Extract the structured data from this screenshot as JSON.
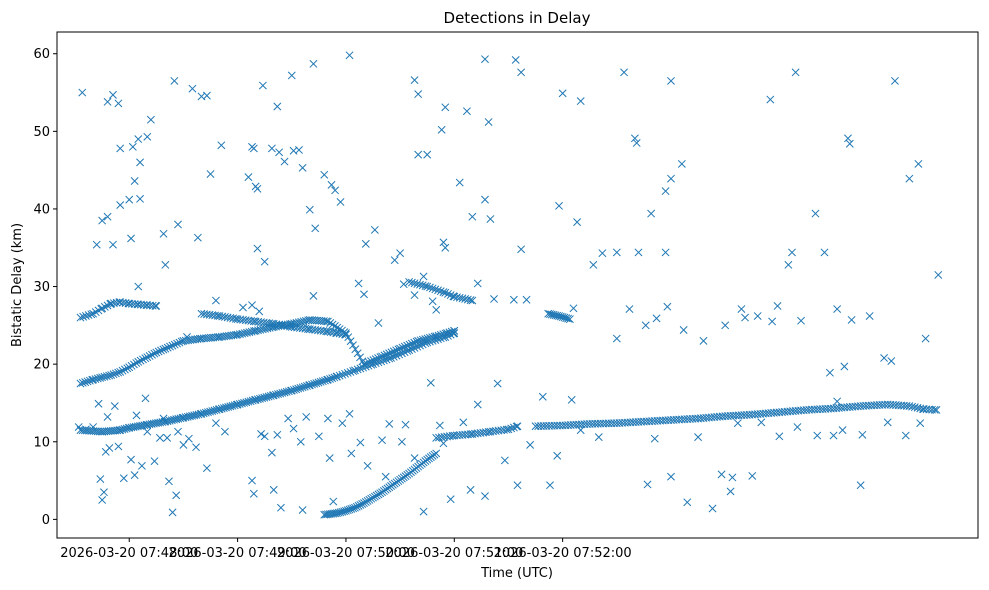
{
  "chart_data": {
    "type": "scatter",
    "title": "Detections in Delay",
    "xlabel": "Time (UTC)",
    "ylabel": "Bistatic Delay (km)",
    "marker": "x",
    "color": "#1f77b4",
    "xlim_seconds": [
      -40,
      470
    ],
    "ylim": [
      -2.4,
      62.8
    ],
    "xticks": [
      {
        "t": 0,
        "label": "2026-03-20 07:48:00"
      },
      {
        "t": 60,
        "label": "2026-03-20 07:49:00"
      },
      {
        "t": 120,
        "label": "2026-03-20 07:50:00"
      },
      {
        "t": 180,
        "label": "2026-03-20 07:51:00"
      },
      {
        "t": 240,
        "label": "2026-03-20 07:52:00"
      }
    ],
    "yticks": [
      0,
      10,
      20,
      30,
      40,
      50,
      60
    ],
    "x_reference": "seconds after 2026-03-20 07:48:00 UTC",
    "tracks": [
      {
        "name": "track-a",
        "t": [
          -27,
          -20,
          -15,
          -10,
          -5,
          0,
          5,
          10,
          15,
          20,
          30,
          40,
          50,
          60,
          70,
          80,
          90,
          100,
          110,
          120,
          130,
          140,
          150,
          160,
          170,
          176,
          180
        ],
        "y": [
          17.5,
          18.0,
          18.3,
          18.6,
          19.0,
          19.6,
          20.3,
          20.9,
          21.5,
          22.0,
          23.0,
          23.3,
          23.5,
          23.8,
          24.3,
          24.8,
          25.2,
          25.7,
          25.5,
          24.0,
          20.0,
          21.0,
          22.0,
          23.0,
          23.6,
          24.0,
          24.3
        ],
        "step": 1.3
      },
      {
        "name": "track-b",
        "t": [
          -27,
          -20,
          -15,
          -10,
          -5,
          0,
          5,
          10,
          15
        ],
        "y": [
          26.0,
          26.5,
          27.2,
          27.8,
          28.0,
          27.8,
          27.7,
          27.6,
          27.5
        ],
        "step": 1.5
      },
      {
        "name": "track-c",
        "t": [
          40,
          50,
          60,
          70,
          80,
          90,
          100,
          110,
          115,
          120
        ],
        "y": [
          26.5,
          26.2,
          25.8,
          25.5,
          25.2,
          24.8,
          24.5,
          24.2,
          24.0,
          23.8
        ],
        "step": 1.5
      },
      {
        "name": "track-d",
        "t": [
          155,
          165,
          175,
          180,
          190
        ],
        "y": [
          30.6,
          30.0,
          29.2,
          28.7,
          28.2
        ],
        "step": 1.5
      },
      {
        "name": "track-e",
        "t": [
          -27,
          -15,
          -5,
          0,
          10,
          20,
          30,
          40,
          50,
          60,
          70,
          80,
          90,
          100,
          110,
          115
        ],
        "y": [
          11.5,
          11.3,
          11.5,
          11.8,
          12.2,
          12.6,
          13.1,
          13.6,
          14.2,
          14.8,
          15.4,
          16.0,
          16.6,
          17.3,
          18.0,
          18.4
        ],
        "step": 1.2
      },
      {
        "name": "track-f",
        "t": [
          115,
          125,
          135,
          145,
          155,
          165,
          175,
          180
        ],
        "y": [
          18.4,
          19.2,
          20.0,
          20.8,
          21.8,
          22.8,
          23.5,
          24.0
        ],
        "step": 1.5
      },
      {
        "name": "track-g",
        "t": [
          108,
          115,
          120,
          125,
          130,
          135,
          140,
          145,
          150,
          155,
          160,
          165,
          170
        ],
        "y": [
          0.6,
          0.8,
          1.1,
          1.5,
          2.1,
          2.8,
          3.5,
          4.3,
          5.1,
          5.9,
          6.8,
          7.7,
          8.5
        ],
        "step": 1.0
      },
      {
        "name": "track-h",
        "t": [
          170,
          180,
          190,
          200,
          210,
          215
        ],
        "y": [
          10.5,
          10.8,
          11.0,
          11.3,
          11.6,
          12.0
        ],
        "step": 1.5
      },
      {
        "name": "track-i",
        "t": [
          225,
          240,
          255,
          270,
          285,
          300,
          315,
          330,
          345,
          360,
          375,
          390,
          405,
          420,
          432,
          440,
          447
        ],
        "y": [
          12.0,
          12.1,
          12.3,
          12.4,
          12.6,
          12.8,
          13.0,
          13.3,
          13.5,
          13.8,
          14.1,
          14.3,
          14.6,
          14.8,
          14.6,
          14.2,
          14.1
        ],
        "step": 1.5
      },
      {
        "name": "track-j",
        "t": [
          232,
          238,
          244
        ],
        "y": [
          26.5,
          26.2,
          25.8
        ],
        "step": 1.0
      }
    ],
    "points": [
      {
        "t": -26,
        "y": 55.0
      },
      {
        "t": -12,
        "y": 53.8
      },
      {
        "t": -9,
        "y": 54.7
      },
      {
        "t": -6,
        "y": 53.6
      },
      {
        "t": 25,
        "y": 56.5
      },
      {
        "t": 35,
        "y": 55.5
      },
      {
        "t": 40,
        "y": 54.5
      },
      {
        "t": 43,
        "y": 54.6
      },
      {
        "t": 74,
        "y": 55.9
      },
      {
        "t": 82,
        "y": 53.2
      },
      {
        "t": 90,
        "y": 57.2
      },
      {
        "t": 102,
        "y": 58.7
      },
      {
        "t": 122,
        "y": 59.8
      },
      {
        "t": 158,
        "y": 56.6
      },
      {
        "t": 160,
        "y": 54.8
      },
      {
        "t": 173,
        "y": 50.2
      },
      {
        "t": 175,
        "y": 53.1
      },
      {
        "t": 197,
        "y": 59.3
      },
      {
        "t": 214,
        "y": 59.2
      },
      {
        "t": 217,
        "y": 57.6
      },
      {
        "t": 240,
        "y": 54.9
      },
      {
        "t": 250,
        "y": 53.9
      },
      {
        "t": 274,
        "y": 57.6
      },
      {
        "t": 300,
        "y": 56.5
      },
      {
        "t": -5,
        "y": 47.8
      },
      {
        "t": 2,
        "y": 48.0
      },
      {
        "t": 5,
        "y": 49.0
      },
      {
        "t": 6,
        "y": 46.0
      },
      {
        "t": 10,
        "y": 49.3
      },
      {
        "t": 12,
        "y": 51.5
      },
      {
        "t": 45,
        "y": 44.5
      },
      {
        "t": 51,
        "y": 48.2
      },
      {
        "t": 68,
        "y": 48.0
      },
      {
        "t": 69,
        "y": 47.8
      },
      {
        "t": 79,
        "y": 47.8
      },
      {
        "t": 83,
        "y": 47.3
      },
      {
        "t": 86,
        "y": 46.1
      },
      {
        "t": 91,
        "y": 47.5
      },
      {
        "t": 94,
        "y": 47.6
      },
      {
        "t": 96,
        "y": 45.3
      },
      {
        "t": 160,
        "y": 47.0
      },
      {
        "t": 165,
        "y": 47.0
      },
      {
        "t": 183,
        "y": 43.4
      },
      {
        "t": 187,
        "y": 52.6
      },
      {
        "t": 199,
        "y": 51.2
      },
      {
        "t": 280,
        "y": 49.1
      },
      {
        "t": 281,
        "y": 48.5
      },
      {
        "t": 297,
        "y": 42.3
      },
      {
        "t": -5,
        "y": 40.5
      },
      {
        "t": 0,
        "y": 41.2
      },
      {
        "t": 1,
        "y": 36.2
      },
      {
        "t": 3,
        "y": 43.6
      },
      {
        "t": 6,
        "y": 41.3
      },
      {
        "t": 19,
        "y": 36.8
      },
      {
        "t": 27,
        "y": 38.0
      },
      {
        "t": 38,
        "y": 36.3
      },
      {
        "t": 66,
        "y": 44.1
      },
      {
        "t": 70,
        "y": 42.9
      },
      {
        "t": 71,
        "y": 42.6
      },
      {
        "t": 71,
        "y": 34.9
      },
      {
        "t": 75,
        "y": 33.2
      },
      {
        "t": 100,
        "y": 39.9
      },
      {
        "t": 103,
        "y": 37.5
      },
      {
        "t": 108,
        "y": 44.4
      },
      {
        "t": 112,
        "y": 43.1
      },
      {
        "t": 114,
        "y": 42.4
      },
      {
        "t": 117,
        "y": 40.9
      },
      {
        "t": 131,
        "y": 35.5
      },
      {
        "t": 136,
        "y": 37.3
      },
      {
        "t": 174,
        "y": 35.7
      },
      {
        "t": 175,
        "y": 35.0
      },
      {
        "t": 190,
        "y": 39.0
      },
      {
        "t": 197,
        "y": 41.2
      },
      {
        "t": 200,
        "y": 38.7
      },
      {
        "t": 217,
        "y": 34.8
      },
      {
        "t": 238,
        "y": 40.4
      },
      {
        "t": 248,
        "y": 38.3
      },
      {
        "t": 270,
        "y": 34.4
      },
      {
        "t": 282,
        "y": 34.4
      },
      {
        "t": 289,
        "y": 39.4
      },
      {
        "t": 297,
        "y": 34.4
      },
      {
        "t": 300,
        "y": 43.9
      },
      {
        "t": 306,
        "y": 45.8
      },
      {
        "t": 5,
        "y": 30.0
      },
      {
        "t": -15,
        "y": 38.5
      },
      {
        "t": -12,
        "y": 39.0
      },
      {
        "t": -18,
        "y": 35.4
      },
      {
        "t": -9,
        "y": 35.4
      },
      {
        "t": -10,
        "y": 27.8
      },
      {
        "t": 20,
        "y": 32.8
      },
      {
        "t": 32,
        "y": 23.5
      },
      {
        "t": 48,
        "y": 28.2
      },
      {
        "t": 63,
        "y": 27.3
      },
      {
        "t": 68,
        "y": 27.6
      },
      {
        "t": 72,
        "y": 26.8
      },
      {
        "t": 83,
        "y": 25.1
      },
      {
        "t": 102,
        "y": 28.8
      },
      {
        "t": 127,
        "y": 30.4
      },
      {
        "t": 130,
        "y": 29.0
      },
      {
        "t": 138,
        "y": 25.3
      },
      {
        "t": 147,
        "y": 33.4
      },
      {
        "t": 150,
        "y": 34.3
      },
      {
        "t": 152,
        "y": 30.3
      },
      {
        "t": 158,
        "y": 28.9
      },
      {
        "t": 163,
        "y": 31.3
      },
      {
        "t": 168,
        "y": 28.1
      },
      {
        "t": 170,
        "y": 27.0
      },
      {
        "t": 193,
        "y": 30.4
      },
      {
        "t": 202,
        "y": 28.4
      },
      {
        "t": 213,
        "y": 28.3
      },
      {
        "t": 220,
        "y": 28.3
      },
      {
        "t": 246,
        "y": 27.2
      },
      {
        "t": 257,
        "y": 32.8
      },
      {
        "t": 262,
        "y": 34.3
      },
      {
        "t": 270,
        "y": 23.3
      },
      {
        "t": 277,
        "y": 27.1
      },
      {
        "t": 286,
        "y": 25.0
      },
      {
        "t": 292,
        "y": 25.9
      },
      {
        "t": 298,
        "y": 27.4
      },
      {
        "t": 307,
        "y": 24.4
      },
      {
        "t": 318,
        "y": 23.0
      },
      {
        "t": 330,
        "y": 25.0
      },
      {
        "t": 339,
        "y": 27.1
      },
      {
        "t": 341,
        "y": 26.0
      },
      {
        "t": 348,
        "y": 26.2
      },
      {
        "t": 356,
        "y": 25.5
      },
      {
        "t": 359,
        "y": 27.5
      },
      {
        "t": 367,
        "y": 34.4
      },
      {
        "t": 372,
        "y": 25.6
      },
      {
        "t": 380,
        "y": 39.4
      },
      {
        "t": 385,
        "y": 34.4
      },
      {
        "t": 392,
        "y": 27.1
      },
      {
        "t": 400,
        "y": 25.7
      },
      {
        "t": 410,
        "y": 26.2
      },
      {
        "t": 418,
        "y": 20.8
      },
      {
        "t": 422,
        "y": 20.4
      },
      {
        "t": 424,
        "y": 56.5
      },
      {
        "t": 432,
        "y": 43.9
      },
      {
        "t": 437,
        "y": 45.8
      },
      {
        "t": 441,
        "y": 23.3
      },
      {
        "t": 448,
        "y": 31.5
      },
      {
        "t": 398,
        "y": 49.1
      },
      {
        "t": 399,
        "y": 48.4
      },
      {
        "t": 396,
        "y": 19.7
      },
      {
        "t": 392,
        "y": 15.2
      },
      {
        "t": 388,
        "y": 18.9
      },
      {
        "t": 369,
        "y": 57.6
      },
      {
        "t": 355,
        "y": 54.1
      },
      {
        "t": 365,
        "y": 32.8
      },
      {
        "t": -28,
        "y": 11.9
      },
      {
        "t": -24,
        "y": 11.6
      },
      {
        "t": -20,
        "y": 11.9
      },
      {
        "t": -16,
        "y": 5.2
      },
      {
        "t": -15,
        "y": 2.5
      },
      {
        "t": -14,
        "y": 3.5
      },
      {
        "t": -13,
        "y": 8.7
      },
      {
        "t": -11,
        "y": 9.2
      },
      {
        "t": -17,
        "y": 14.9
      },
      {
        "t": -12,
        "y": 13.2
      },
      {
        "t": -8,
        "y": 14.6
      },
      {
        "t": -6,
        "y": 9.4
      },
      {
        "t": -3,
        "y": 5.3
      },
      {
        "t": 1,
        "y": 7.7
      },
      {
        "t": 3,
        "y": 5.7
      },
      {
        "t": 4,
        "y": 13.4
      },
      {
        "t": 7,
        "y": 6.9
      },
      {
        "t": 9,
        "y": 15.6
      },
      {
        "t": 10,
        "y": 11.3
      },
      {
        "t": 14,
        "y": 7.5
      },
      {
        "t": 17,
        "y": 10.5
      },
      {
        "t": 19,
        "y": 13.0
      },
      {
        "t": 21,
        "y": 10.5
      },
      {
        "t": 22,
        "y": 4.9
      },
      {
        "t": 24,
        "y": 0.9
      },
      {
        "t": 26,
        "y": 3.1
      },
      {
        "t": 27,
        "y": 11.3
      },
      {
        "t": 30,
        "y": 9.6
      },
      {
        "t": 33,
        "y": 10.4
      },
      {
        "t": 37,
        "y": 9.3
      },
      {
        "t": 43,
        "y": 6.6
      },
      {
        "t": 48,
        "y": 12.4
      },
      {
        "t": 53,
        "y": 11.3
      },
      {
        "t": 68,
        "y": 5.0
      },
      {
        "t": 69,
        "y": 3.3
      },
      {
        "t": 73,
        "y": 11.0
      },
      {
        "t": 75,
        "y": 10.7
      },
      {
        "t": 79,
        "y": 8.6
      },
      {
        "t": 80,
        "y": 3.8
      },
      {
        "t": 82,
        "y": 10.9
      },
      {
        "t": 84,
        "y": 1.5
      },
      {
        "t": 88,
        "y": 13.0
      },
      {
        "t": 91,
        "y": 11.7
      },
      {
        "t": 95,
        "y": 10.0
      },
      {
        "t": 96,
        "y": 1.2
      },
      {
        "t": 98,
        "y": 13.2
      },
      {
        "t": 105,
        "y": 10.7
      },
      {
        "t": 110,
        "y": 13.0
      },
      {
        "t": 111,
        "y": 7.9
      },
      {
        "t": 113,
        "y": 2.3
      },
      {
        "t": 118,
        "y": 12.4
      },
      {
        "t": 122,
        "y": 13.6
      },
      {
        "t": 123,
        "y": 8.5
      },
      {
        "t": 128,
        "y": 9.9
      },
      {
        "t": 132,
        "y": 6.9
      },
      {
        "t": 140,
        "y": 10.2
      },
      {
        "t": 142,
        "y": 5.5
      },
      {
        "t": 144,
        "y": 12.3
      },
      {
        "t": 151,
        "y": 10.0
      },
      {
        "t": 153,
        "y": 12.2
      },
      {
        "t": 158,
        "y": 7.9
      },
      {
        "t": 163,
        "y": 1.0
      },
      {
        "t": 167,
        "y": 17.6
      },
      {
        "t": 172,
        "y": 12.1
      },
      {
        "t": 174,
        "y": 9.8
      },
      {
        "t": 178,
        "y": 2.6
      },
      {
        "t": 185,
        "y": 12.5
      },
      {
        "t": 189,
        "y": 3.8
      },
      {
        "t": 193,
        "y": 14.8
      },
      {
        "t": 197,
        "y": 3.0
      },
      {
        "t": 204,
        "y": 17.5
      },
      {
        "t": 208,
        "y": 7.6
      },
      {
        "t": 215,
        "y": 4.4
      },
      {
        "t": 222,
        "y": 9.6
      },
      {
        "t": 229,
        "y": 15.8
      },
      {
        "t": 233,
        "y": 4.4
      },
      {
        "t": 237,
        "y": 8.2
      },
      {
        "t": 245,
        "y": 15.4
      },
      {
        "t": 250,
        "y": 11.5
      },
      {
        "t": 260,
        "y": 10.6
      },
      {
        "t": 287,
        "y": 4.5
      },
      {
        "t": 291,
        "y": 10.4
      },
      {
        "t": 300,
        "y": 5.5
      },
      {
        "t": 309,
        "y": 2.2
      },
      {
        "t": 315,
        "y": 10.6
      },
      {
        "t": 323,
        "y": 1.4
      },
      {
        "t": 328,
        "y": 5.8
      },
      {
        "t": 333,
        "y": 3.6
      },
      {
        "t": 334,
        "y": 5.4
      },
      {
        "t": 337,
        "y": 12.4
      },
      {
        "t": 345,
        "y": 5.6
      },
      {
        "t": 350,
        "y": 12.5
      },
      {
        "t": 360,
        "y": 10.7
      },
      {
        "t": 370,
        "y": 11.9
      },
      {
        "t": 381,
        "y": 10.8
      },
      {
        "t": 390,
        "y": 10.8
      },
      {
        "t": 395,
        "y": 11.5
      },
      {
        "t": 405,
        "y": 4.4
      },
      {
        "t": 406,
        "y": 10.9
      },
      {
        "t": 420,
        "y": 12.5
      },
      {
        "t": 430,
        "y": 10.8
      },
      {
        "t": 438,
        "y": 12.4
      }
    ]
  }
}
